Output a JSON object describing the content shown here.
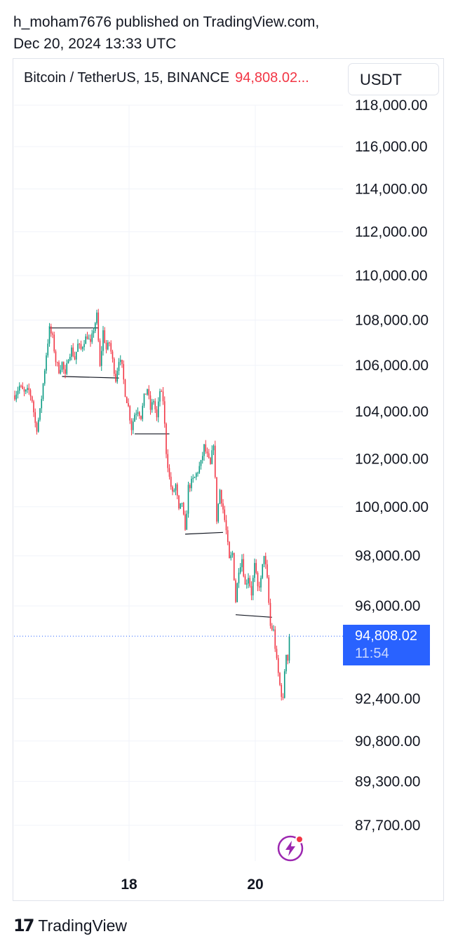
{
  "publisher": {
    "line1": "h_moham7676 published on TradingView.com,",
    "line2": "Dec 20, 2024 13:33 UTC"
  },
  "symbol": {
    "name": "Bitcoin / TetherUS, 15, BINANCE",
    "last_price": "94,808.02...",
    "currency": "USDT"
  },
  "price_tag": {
    "price": "94,808.02",
    "countdown": "11:54"
  },
  "footer": {
    "brand": "TradingView"
  },
  "colors": {
    "up": "#089981",
    "down": "#f23645",
    "accent": "#2962ff"
  },
  "chart_data": {
    "type": "candlestick",
    "title": "Bitcoin / TetherUS, 15, BINANCE",
    "y_ticks": [
      {
        "value": 118000,
        "label": "118,000.00"
      },
      {
        "value": 116000,
        "label": "116,000.00"
      },
      {
        "value": 114000,
        "label": "114,000.00"
      },
      {
        "value": 112000,
        "label": "112,000.00"
      },
      {
        "value": 110000,
        "label": "110,000.00"
      },
      {
        "value": 108000,
        "label": "108,000.00"
      },
      {
        "value": 106000,
        "label": "106,000.00"
      },
      {
        "value": 104000,
        "label": "104,000.00"
      },
      {
        "value": 102000,
        "label": "102,000.00"
      },
      {
        "value": 100000,
        "label": "100,000.00"
      },
      {
        "value": 98000,
        "label": "98,000.00"
      },
      {
        "value": 96000,
        "label": "96,000.00"
      },
      {
        "value": 92400,
        "label": "92,400.00"
      },
      {
        "value": 90800,
        "label": "90,800.00"
      },
      {
        "value": 89300,
        "label": "89,300.00"
      },
      {
        "value": 87700,
        "label": "87,700.00"
      }
    ],
    "x_ticks": [
      "18",
      "20"
    ],
    "log_scale": true,
    "grid": true,
    "last_price": 94808.02,
    "price_path": [
      [
        0,
        104700
      ],
      [
        3,
        105100
      ],
      [
        6,
        104800
      ],
      [
        9,
        104900
      ],
      [
        11,
        104500
      ],
      [
        13,
        103500
      ],
      [
        14,
        103300
      ],
      [
        16,
        104000
      ],
      [
        18,
        105200
      ],
      [
        20,
        106500
      ],
      [
        22,
        107600
      ],
      [
        24,
        107200
      ],
      [
        26,
        106200
      ],
      [
        28,
        105800
      ],
      [
        30,
        106100
      ],
      [
        32,
        105500
      ],
      [
        34,
        106400
      ],
      [
        36,
        106700
      ],
      [
        38,
        106300
      ],
      [
        40,
        106900
      ],
      [
        42,
        106700
      ],
      [
        44,
        107100
      ],
      [
        46,
        107300
      ],
      [
        48,
        106900
      ],
      [
        50,
        107600
      ],
      [
        52,
        108200
      ],
      [
        54,
        105900
      ],
      [
        56,
        107500
      ],
      [
        58,
        106700
      ],
      [
        60,
        107000
      ],
      [
        62,
        106200
      ],
      [
        64,
        105400
      ],
      [
        66,
        106300
      ],
      [
        68,
        105900
      ],
      [
        70,
        104800
      ],
      [
        72,
        104200
      ],
      [
        74,
        103300
      ],
      [
        76,
        103900
      ],
      [
        78,
        104100
      ],
      [
        80,
        103800
      ],
      [
        82,
        104600
      ],
      [
        84,
        105000
      ],
      [
        86,
        104100
      ],
      [
        88,
        104500
      ],
      [
        90,
        103700
      ],
      [
        92,
        104900
      ],
      [
        94,
        104500
      ],
      [
        96,
        102300
      ],
      [
        98,
        101200
      ],
      [
        100,
        100500
      ],
      [
        102,
        100900
      ],
      [
        104,
        99800
      ],
      [
        106,
        100200
      ],
      [
        108,
        98900
      ],
      [
        110,
        100800
      ],
      [
        112,
        101000
      ],
      [
        114,
        101200
      ],
      [
        116,
        101500
      ],
      [
        118,
        101800
      ],
      [
        120,
        102500
      ],
      [
        122,
        102100
      ],
      [
        124,
        101700
      ],
      [
        126,
        102700
      ],
      [
        128,
        99500
      ],
      [
        130,
        100700
      ],
      [
        132,
        99900
      ],
      [
        134,
        99000
      ],
      [
        136,
        97800
      ],
      [
        138,
        98100
      ],
      [
        140,
        96200
      ],
      [
        142,
        97500
      ],
      [
        144,
        97900
      ],
      [
        146,
        96800
      ],
      [
        148,
        97200
      ],
      [
        150,
        96500
      ],
      [
        152,
        97600
      ],
      [
        154,
        96700
      ],
      [
        156,
        97000
      ],
      [
        158,
        98100
      ],
      [
        160,
        97000
      ],
      [
        162,
        95200
      ],
      [
        164,
        95000
      ],
      [
        166,
        93800
      ],
      [
        168,
        92900
      ],
      [
        170,
        92300
      ],
      [
        171,
        93500
      ],
      [
        172,
        94200
      ],
      [
        173,
        93900
      ],
      [
        174,
        94800
      ]
    ],
    "drawings": [
      {
        "from": [
          22,
          107650
        ],
        "to": [
          53,
          107650
        ]
      },
      {
        "from": [
          30,
          105520
        ],
        "to": [
          66,
          105450
        ]
      },
      {
        "from": [
          76,
          103050
        ],
        "to": [
          98,
          103050
        ]
      },
      {
        "from": [
          108,
          98880
        ],
        "to": [
          132,
          98950
        ]
      },
      {
        "from": [
          140,
          95650
        ],
        "to": [
          163,
          95550
        ]
      }
    ]
  }
}
